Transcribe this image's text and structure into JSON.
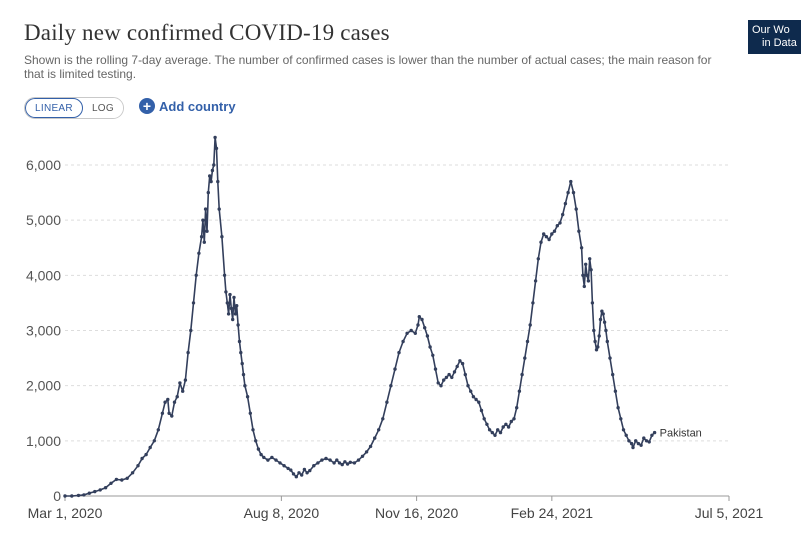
{
  "header": {
    "title": "Daily new confirmed COVID-19 cases",
    "subtitle": "Shown is the rolling 7-day average. The number of confirmed cases is lower than the number of actual cases; the main reason for that is limited testing."
  },
  "logo": {
    "line1": "Our Wo",
    "line2": "in Data"
  },
  "controls": {
    "linear_label": "LINEAR",
    "log_label": "LOG",
    "add_country_label": "Add country",
    "plus_icon": "+"
  },
  "colors": {
    "line": "#333f5c",
    "grid": "#dddddd",
    "accent": "#3360a9",
    "logo_bg": "#0e2a4d"
  },
  "chart_data": {
    "type": "line",
    "title": "Daily new confirmed COVID-19 cases",
    "xlabel": "",
    "ylabel": "",
    "ylim": [
      0,
      6500
    ],
    "yticks": [
      0,
      1000,
      2000,
      3000,
      4000,
      5000,
      6000
    ],
    "ytick_labels": [
      "0",
      "1,000",
      "2,000",
      "3,000",
      "4,000",
      "5,000",
      "6,000"
    ],
    "x_range_days": [
      0,
      491
    ],
    "xticks": [
      {
        "day": 0,
        "label": "Mar 1, 2020"
      },
      {
        "day": 160,
        "label": "Aug 8, 2020"
      },
      {
        "day": 260,
        "label": "Nov 16, 2020"
      },
      {
        "day": 360,
        "label": "Feb 24, 2021"
      },
      {
        "day": 491,
        "label": "Jul 5, 2021"
      }
    ],
    "series": [
      {
        "name": "Pakistan",
        "points": [
          [
            0,
            0
          ],
          [
            5,
            0
          ],
          [
            10,
            10
          ],
          [
            14,
            20
          ],
          [
            18,
            50
          ],
          [
            22,
            80
          ],
          [
            26,
            110
          ],
          [
            30,
            150
          ],
          [
            34,
            230
          ],
          [
            38,
            300
          ],
          [
            42,
            290
          ],
          [
            46,
            320
          ],
          [
            50,
            420
          ],
          [
            54,
            550
          ],
          [
            57,
            680
          ],
          [
            60,
            750
          ],
          [
            63,
            880
          ],
          [
            66,
            1000
          ],
          [
            69,
            1200
          ],
          [
            72,
            1500
          ],
          [
            74,
            1700
          ],
          [
            76,
            1750
          ],
          [
            77,
            1500
          ],
          [
            79,
            1450
          ],
          [
            81,
            1700
          ],
          [
            83,
            1800
          ],
          [
            85,
            2050
          ],
          [
            87,
            1900
          ],
          [
            89,
            2100
          ],
          [
            91,
            2600
          ],
          [
            93,
            3000
          ],
          [
            95,
            3500
          ],
          [
            97,
            4000
          ],
          [
            99,
            4400
          ],
          [
            101,
            4700
          ],
          [
            102,
            5000
          ],
          [
            103,
            4600
          ],
          [
            104,
            5200
          ],
          [
            105,
            4800
          ],
          [
            106,
            5500
          ],
          [
            107,
            5800
          ],
          [
            108,
            5700
          ],
          [
            109,
            5900
          ],
          [
            110,
            6000
          ],
          [
            111,
            6500
          ],
          [
            112,
            6300
          ],
          [
            113,
            5700
          ],
          [
            114,
            5200
          ],
          [
            116,
            4700
          ],
          [
            118,
            4000
          ],
          [
            119,
            3700
          ],
          [
            120,
            3500
          ],
          [
            121,
            3300
          ],
          [
            122,
            3650
          ],
          [
            123,
            3400
          ],
          [
            124,
            3200
          ],
          [
            125,
            3600
          ],
          [
            126,
            3300
          ],
          [
            127,
            3450
          ],
          [
            128,
            3100
          ],
          [
            129,
            2800
          ],
          [
            130,
            2600
          ],
          [
            131,
            2400
          ],
          [
            132,
            2200
          ],
          [
            133,
            2000
          ],
          [
            135,
            1800
          ],
          [
            137,
            1500
          ],
          [
            139,
            1200
          ],
          [
            141,
            1000
          ],
          [
            143,
            850
          ],
          [
            145,
            750
          ],
          [
            147,
            700
          ],
          [
            150,
            650
          ],
          [
            153,
            700
          ],
          [
            156,
            650
          ],
          [
            159,
            600
          ],
          [
            162,
            550
          ],
          [
            165,
            500
          ],
          [
            167,
            470
          ],
          [
            169,
            400
          ],
          [
            171,
            350
          ],
          [
            173,
            420
          ],
          [
            175,
            380
          ],
          [
            177,
            480
          ],
          [
            179,
            420
          ],
          [
            181,
            460
          ],
          [
            184,
            550
          ],
          [
            187,
            600
          ],
          [
            190,
            650
          ],
          [
            193,
            680
          ],
          [
            196,
            650
          ],
          [
            199,
            600
          ],
          [
            201,
            650
          ],
          [
            203,
            600
          ],
          [
            205,
            570
          ],
          [
            207,
            620
          ],
          [
            209,
            580
          ],
          [
            211,
            610
          ],
          [
            214,
            600
          ],
          [
            217,
            650
          ],
          [
            220,
            720
          ],
          [
            223,
            800
          ],
          [
            226,
            900
          ],
          [
            229,
            1050
          ],
          [
            232,
            1200
          ],
          [
            235,
            1400
          ],
          [
            238,
            1700
          ],
          [
            241,
            2000
          ],
          [
            244,
            2300
          ],
          [
            247,
            2600
          ],
          [
            250,
            2800
          ],
          [
            253,
            2950
          ],
          [
            256,
            3000
          ],
          [
            259,
            2950
          ],
          [
            261,
            3100
          ],
          [
            262,
            3250
          ],
          [
            264,
            3200
          ],
          [
            266,
            3050
          ],
          [
            268,
            2900
          ],
          [
            270,
            2700
          ],
          [
            272,
            2550
          ],
          [
            274,
            2300
          ],
          [
            276,
            2050
          ],
          [
            278,
            2000
          ],
          [
            280,
            2100
          ],
          [
            282,
            2150
          ],
          [
            284,
            2200
          ],
          [
            286,
            2150
          ],
          [
            288,
            2250
          ],
          [
            290,
            2350
          ],
          [
            292,
            2450
          ],
          [
            294,
            2400
          ],
          [
            296,
            2200
          ],
          [
            298,
            2000
          ],
          [
            300,
            1900
          ],
          [
            302,
            1800
          ],
          [
            304,
            1750
          ],
          [
            306,
            1700
          ],
          [
            308,
            1550
          ],
          [
            310,
            1400
          ],
          [
            312,
            1300
          ],
          [
            314,
            1200
          ],
          [
            316,
            1150
          ],
          [
            318,
            1100
          ],
          [
            320,
            1200
          ],
          [
            322,
            1150
          ],
          [
            324,
            1250
          ],
          [
            326,
            1300
          ],
          [
            328,
            1250
          ],
          [
            330,
            1350
          ],
          [
            332,
            1400
          ],
          [
            334,
            1600
          ],
          [
            336,
            1900
          ],
          [
            338,
            2200
          ],
          [
            340,
            2500
          ],
          [
            342,
            2800
          ],
          [
            344,
            3100
          ],
          [
            346,
            3500
          ],
          [
            348,
            3900
          ],
          [
            350,
            4300
          ],
          [
            352,
            4600
          ],
          [
            354,
            4750
          ],
          [
            356,
            4700
          ],
          [
            358,
            4650
          ],
          [
            360,
            4750
          ],
          [
            362,
            4800
          ],
          [
            364,
            4900
          ],
          [
            366,
            4950
          ],
          [
            368,
            5100
          ],
          [
            370,
            5300
          ],
          [
            372,
            5500
          ],
          [
            374,
            5700
          ],
          [
            376,
            5500
          ],
          [
            378,
            5200
          ],
          [
            380,
            4800
          ],
          [
            382,
            4500
          ],
          [
            383,
            4000
          ],
          [
            384,
            3800
          ],
          [
            385,
            4200
          ],
          [
            386,
            4000
          ],
          [
            387,
            3900
          ],
          [
            388,
            4300
          ],
          [
            389,
            4100
          ],
          [
            390,
            3500
          ],
          [
            391,
            3000
          ],
          [
            392,
            2800
          ],
          [
            393,
            2650
          ],
          [
            394,
            2700
          ],
          [
            395,
            2900
          ],
          [
            396,
            3200
          ],
          [
            397,
            3350
          ],
          [
            398,
            3300
          ],
          [
            399,
            3150
          ],
          [
            400,
            3000
          ],
          [
            401,
            2800
          ],
          [
            403,
            2500
          ],
          [
            405,
            2200
          ],
          [
            407,
            1900
          ],
          [
            409,
            1600
          ],
          [
            411,
            1400
          ],
          [
            413,
            1200
          ],
          [
            415,
            1100
          ],
          [
            417,
            1000
          ],
          [
            419,
            950
          ],
          [
            420,
            880
          ],
          [
            422,
            1000
          ],
          [
            424,
            950
          ],
          [
            426,
            920
          ],
          [
            428,
            1050
          ],
          [
            430,
            1000
          ],
          [
            432,
            980
          ],
          [
            434,
            1100
          ],
          [
            436,
            1150
          ]
        ]
      }
    ]
  }
}
